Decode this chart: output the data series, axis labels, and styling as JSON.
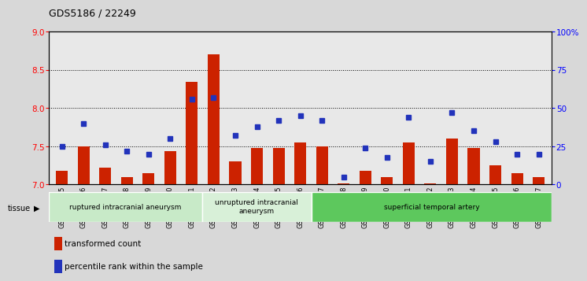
{
  "title": "GDS5186 / 22249",
  "samples": [
    "GSM1306885",
    "GSM1306886",
    "GSM1306887",
    "GSM1306888",
    "GSM1306889",
    "GSM1306890",
    "GSM1306891",
    "GSM1306892",
    "GSM1306893",
    "GSM1306894",
    "GSM1306895",
    "GSM1306896",
    "GSM1306897",
    "GSM1306898",
    "GSM1306899",
    "GSM1306900",
    "GSM1306901",
    "GSM1306902",
    "GSM1306903",
    "GSM1306904",
    "GSM1306905",
    "GSM1306906",
    "GSM1306907"
  ],
  "bar_values": [
    7.18,
    7.5,
    7.22,
    7.1,
    7.15,
    7.44,
    8.34,
    8.7,
    7.3,
    7.48,
    7.48,
    7.55,
    7.5,
    7.02,
    7.18,
    7.1,
    7.55,
    7.02,
    7.6,
    7.48,
    7.25,
    7.15,
    7.1
  ],
  "dot_values": [
    25,
    40,
    26,
    22,
    20,
    30,
    56,
    57,
    32,
    38,
    42,
    45,
    42,
    5,
    24,
    18,
    44,
    15,
    47,
    35,
    28,
    20,
    20
  ],
  "ylim_left": [
    7.0,
    9.0
  ],
  "ylim_right": [
    0,
    100
  ],
  "yticks_left": [
    7.0,
    7.5,
    8.0,
    8.5,
    9.0
  ],
  "yticks_right": [
    0,
    25,
    50,
    75,
    100
  ],
  "ytick_labels_right": [
    "0",
    "25",
    "50",
    "75",
    "100%"
  ],
  "gridlines": [
    7.5,
    8.0,
    8.5
  ],
  "groups": [
    {
      "label": "ruptured intracranial aneurysm",
      "start": 0,
      "end": 7,
      "color": "#c8eac8"
    },
    {
      "label": "unruptured intracranial\naneurysm",
      "start": 7,
      "end": 12,
      "color": "#d8f0d8"
    },
    {
      "label": "superficial temporal artery",
      "start": 12,
      "end": 23,
      "color": "#5dc85d"
    }
  ],
  "bar_color": "#cc2200",
  "dot_color": "#2233bb",
  "background_color": "#d8d8d8",
  "plot_bg_color": "#e8e8e8",
  "tissue_label": "tissue",
  "legend_bar_label": "transformed count",
  "legend_dot_label": "percentile rank within the sample"
}
